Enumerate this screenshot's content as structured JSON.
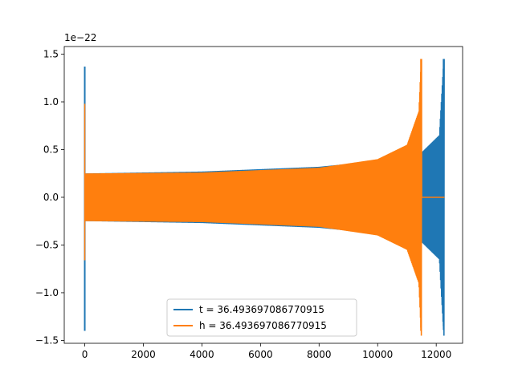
{
  "chart_data": {
    "type": "line",
    "xlim": [
      -700,
      12900
    ],
    "ylim": [
      -1.53,
      1.58
    ],
    "y_offset_text": "1e−22",
    "x_ticks": [
      0,
      2000,
      4000,
      6000,
      8000,
      10000,
      12000
    ],
    "x_tick_labels": [
      "0",
      "2000",
      "4000",
      "6000",
      "8000",
      "10000",
      "12000"
    ],
    "y_ticks": [
      -1.5,
      -1.0,
      -0.5,
      0.0,
      0.5,
      1.0,
      1.5
    ],
    "y_tick_labels": [
      "−1.5",
      "−1.0",
      "−0.5",
      "0.0",
      "0.5",
      "1.0",
      "1.5"
    ],
    "grid": false,
    "legend_position": "lower center",
    "series": [
      {
        "name": "t = 36.493697086770915",
        "color": "#1f77b4",
        "x_range": [
          0,
          12280
        ],
        "peak_positive": 1.45,
        "peak_negative": -1.4,
        "start_spike": [
          1.37,
          -1.4
        ],
        "envelope": [
          {
            "x": 0,
            "y": 0.25
          },
          {
            "x": 4000,
            "y": 0.27
          },
          {
            "x": 8000,
            "y": 0.32
          },
          {
            "x": 10000,
            "y": 0.38
          },
          {
            "x": 11500,
            "y": 0.47
          },
          {
            "x": 12100,
            "y": 0.65
          },
          {
            "x": 12250,
            "y": 1.45
          }
        ]
      },
      {
        "name": "h = 36.493697086770915",
        "color": "#ff7f0e",
        "x_range": [
          0,
          11510
        ],
        "flat_tail": [
          11510,
          12280
        ],
        "peak_positive": 1.45,
        "peak_negative": -1.4,
        "envelope": [
          {
            "x": 0,
            "y": 0.25
          },
          {
            "x": 4000,
            "y": 0.26
          },
          {
            "x": 8000,
            "y": 0.31
          },
          {
            "x": 10000,
            "y": 0.4
          },
          {
            "x": 11000,
            "y": 0.55
          },
          {
            "x": 11400,
            "y": 0.9
          },
          {
            "x": 11480,
            "y": 1.45
          }
        ]
      }
    ]
  }
}
